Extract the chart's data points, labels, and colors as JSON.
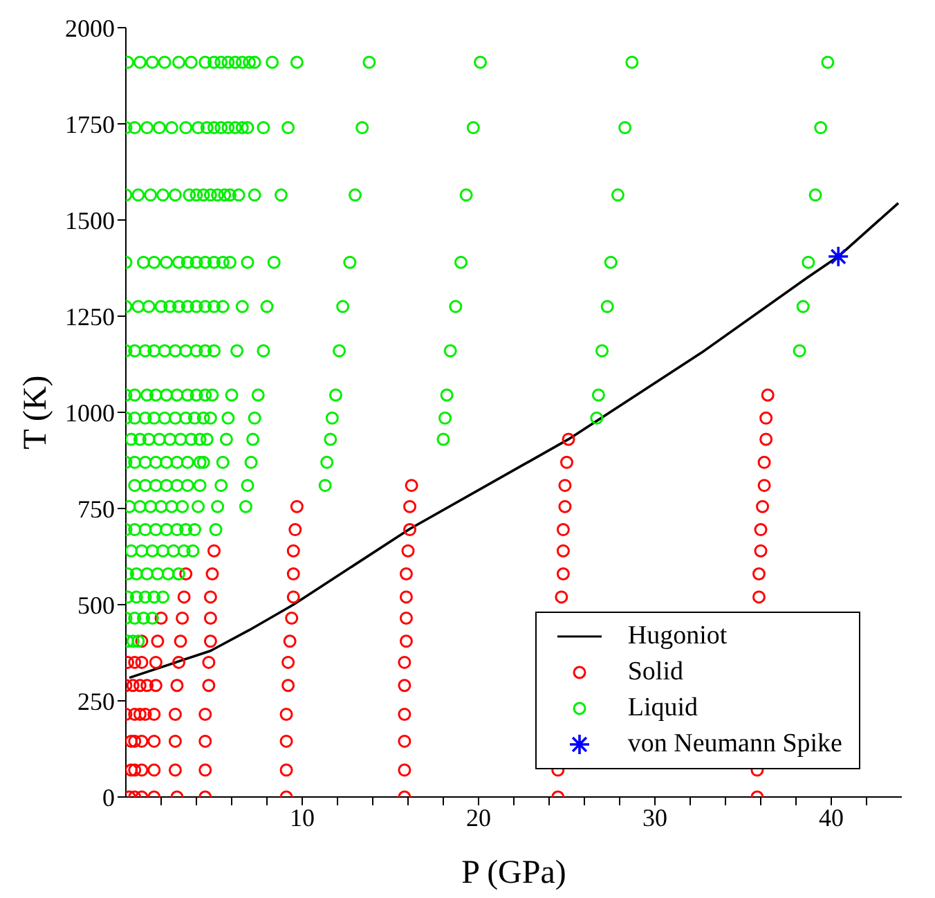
{
  "chart_data": {
    "type": "scatter",
    "xlabel": "P (GPa)",
    "ylabel": "T (K)",
    "xlim": [
      0,
      44
    ],
    "ylim": [
      0,
      2000
    ],
    "xticks": [
      {
        "value": 2,
        "label": null
      },
      {
        "value": 4,
        "label": null
      },
      {
        "value": 6,
        "label": null
      },
      {
        "value": 8,
        "label": null
      },
      10,
      {
        "value": 12,
        "label": null
      },
      {
        "value": 14,
        "label": null
      },
      {
        "value": 16,
        "label": null
      },
      {
        "value": 18,
        "label": null
      },
      20,
      {
        "value": 22,
        "label": null
      },
      {
        "value": 24,
        "label": null
      },
      {
        "value": 26,
        "label": null
      },
      {
        "value": 28,
        "label": null
      },
      30,
      {
        "value": 32,
        "label": null
      },
      {
        "value": 34,
        "label": null
      },
      {
        "value": 36,
        "label": null
      },
      {
        "value": 38,
        "label": null
      },
      40,
      {
        "value": 42,
        "label": null
      }
    ],
    "yticks": [
      0,
      250,
      500,
      750,
      1000,
      1250,
      1500,
      1750,
      2000
    ],
    "legend": "bottom right",
    "series": [
      {
        "name": "Hugoniot",
        "type": "line",
        "color": "#000000",
        "marker": "none",
        "line_style": "solid",
        "x": [
          0.2,
          4.8,
          7.0,
          9.5,
          16.1,
          25.1,
          32.7,
          38.6,
          40.4,
          43.8
        ],
        "values": [
          310,
          380,
          434,
          500,
          697,
          930,
          1157,
          1349,
          1405,
          1544
        ]
      },
      {
        "name": "Solid",
        "color": "#ff0000",
        "marker": "circle",
        "x": [
          36.4,
          36.3,
          25.1,
          36.3,
          25.0,
          36.2,
          16.2,
          24.9,
          36.2,
          9.7,
          16.1,
          24.9,
          36.1,
          9.6,
          16.1,
          24.8,
          36.0,
          5.0,
          9.5,
          16.0,
          24.8,
          36.0,
          3.4,
          4.9,
          9.5,
          15.9,
          24.8,
          35.9,
          3.3,
          4.8,
          9.5,
          15.9,
          24.7,
          35.9,
          2.0,
          3.2,
          4.8,
          9.4,
          15.9,
          0.9,
          1.8,
          3.1,
          4.8,
          9.3,
          15.9,
          0.1,
          0.5,
          0.9,
          1.7,
          3.0,
          4.7,
          9.2,
          15.8,
          0,
          0.4,
          0.8,
          1.2,
          1.7,
          2.9,
          4.7,
          9.2,
          15.8,
          0,
          0.5,
          0.8,
          1.1,
          1.6,
          2.8,
          4.5,
          9.1,
          15.8,
          0.3,
          0.5,
          0.9,
          1.6,
          2.8,
          4.5,
          9.1,
          15.8,
          0.3,
          0.5,
          0.9,
          1.6,
          2.8,
          4.5,
          9.1,
          15.8,
          24.5,
          35.8,
          0.2,
          0.5,
          0.9,
          1.6,
          2.9,
          4.5,
          9.1,
          15.8,
          24.5,
          35.8
        ],
        "values": [
          1045,
          985,
          930,
          930,
          870,
          870,
          810,
          810,
          810,
          755,
          755,
          755,
          755,
          695,
          695,
          695,
          695,
          640,
          640,
          640,
          640,
          640,
          580,
          580,
          580,
          580,
          580,
          580,
          520,
          520,
          520,
          520,
          520,
          520,
          465,
          465,
          465,
          465,
          465,
          405,
          405,
          405,
          405,
          405,
          405,
          350,
          350,
          350,
          350,
          350,
          350,
          350,
          350,
          290,
          290,
          290,
          290,
          290,
          290,
          290,
          290,
          290,
          215,
          215,
          215,
          215,
          215,
          215,
          215,
          215,
          215,
          145,
          145,
          145,
          145,
          145,
          145,
          145,
          145,
          70,
          70,
          70,
          70,
          70,
          70,
          70,
          70,
          70,
          70,
          0,
          0,
          0,
          0,
          0,
          0,
          0,
          0,
          0,
          0
        ]
      },
      {
        "name": "Liquid",
        "color": "#00ee00",
        "marker": "circle",
        "x": [
          0.1,
          0.8,
          1.5,
          2.2,
          3.0,
          3.7,
          4.5,
          5.0,
          5.4,
          5.8,
          6.2,
          6.6,
          7.0,
          7.3,
          8.3,
          9.7,
          13.8,
          20.1,
          28.7,
          39.8,
          0,
          0.5,
          1.2,
          1.9,
          2.6,
          3.4,
          4.1,
          4.6,
          5.0,
          5.4,
          5.8,
          6.2,
          6.6,
          6.9,
          7.8,
          9.2,
          13.4,
          19.7,
          28.3,
          39.4,
          0,
          0.7,
          1.4,
          2.1,
          2.8,
          3.6,
          4.0,
          4.4,
          4.8,
          5.2,
          5.6,
          5.9,
          6.4,
          7.3,
          8.8,
          13.0,
          19.3,
          27.9,
          39.1,
          0,
          1.0,
          1.6,
          2.3,
          3.0,
          3.5,
          4.0,
          4.5,
          5.0,
          5.5,
          5.9,
          6.9,
          8.4,
          12.7,
          19.0,
          27.5,
          38.7,
          0,
          0.7,
          1.3,
          2.0,
          2.5,
          3.0,
          3.5,
          4.0,
          4.5,
          5.0,
          5.5,
          6.6,
          8.0,
          12.3,
          18.7,
          27.3,
          38.4,
          0,
          0.5,
          1.1,
          1.6,
          2.2,
          2.8,
          3.4,
          4.0,
          4.5,
          5.0,
          6.3,
          7.8,
          12.1,
          18.4,
          27.0,
          38.2,
          0,
          0.5,
          1.2,
          1.7,
          2.3,
          2.9,
          3.5,
          4.0,
          4.5,
          4.9,
          6.0,
          7.5,
          11.9,
          18.2,
          26.8,
          0,
          0.5,
          1.1,
          1.6,
          2.2,
          2.8,
          3.4,
          3.9,
          4.4,
          4.8,
          5.8,
          7.3,
          11.7,
          18.1,
          26.7,
          0.3,
          0.8,
          1.3,
          1.9,
          2.5,
          3.1,
          3.7,
          4.2,
          4.6,
          5.7,
          7.2,
          11.6,
          18.0,
          0,
          0.5,
          1.1,
          1.7,
          2.3,
          2.9,
          3.5,
          4.2,
          4.4,
          5.5,
          7.1,
          11.4,
          0.5,
          1.1,
          1.7,
          2.3,
          2.9,
          3.5,
          4.2,
          5.4,
          6.9,
          11.3,
          0.2,
          0.8,
          1.4,
          2.0,
          2.6,
          3.2,
          4.1,
          5.2,
          6.8,
          0,
          0.5,
          1.1,
          1.7,
          2.3,
          2.9,
          3.4,
          3.9,
          5.1,
          0.3,
          0.9,
          1.5,
          2.1,
          2.7,
          3.3,
          3.8,
          0.1,
          0.6,
          1.2,
          1.8,
          2.4,
          3.0,
          0.1,
          0.6,
          1.1,
          1.6,
          2.1,
          0,
          0.5,
          1.0,
          1.5,
          0.1,
          0.4,
          0.7
        ],
        "values": [
          1910,
          1910,
          1910,
          1910,
          1910,
          1910,
          1910,
          1910,
          1910,
          1910,
          1910,
          1910,
          1910,
          1910,
          1910,
          1910,
          1910,
          1910,
          1910,
          1910,
          1740,
          1740,
          1740,
          1740,
          1740,
          1740,
          1740,
          1740,
          1740,
          1740,
          1740,
          1740,
          1740,
          1740,
          1740,
          1740,
          1740,
          1740,
          1740,
          1740,
          1565,
          1565,
          1565,
          1565,
          1565,
          1565,
          1565,
          1565,
          1565,
          1565,
          1565,
          1565,
          1565,
          1565,
          1565,
          1565,
          1565,
          1565,
          1565,
          1390,
          1390,
          1390,
          1390,
          1390,
          1390,
          1390,
          1390,
          1390,
          1390,
          1390,
          1390,
          1390,
          1390,
          1390,
          1390,
          1390,
          1275,
          1275,
          1275,
          1275,
          1275,
          1275,
          1275,
          1275,
          1275,
          1275,
          1275,
          1275,
          1275,
          1275,
          1275,
          1275,
          1275,
          1160,
          1160,
          1160,
          1160,
          1160,
          1160,
          1160,
          1160,
          1160,
          1160,
          1160,
          1160,
          1160,
          1160,
          1160,
          1160,
          1045,
          1045,
          1045,
          1045,
          1045,
          1045,
          1045,
          1045,
          1045,
          1045,
          1045,
          1045,
          1045,
          1045,
          1045,
          985,
          985,
          985,
          985,
          985,
          985,
          985,
          985,
          985,
          985,
          985,
          985,
          985,
          985,
          985,
          930,
          930,
          930,
          930,
          930,
          930,
          930,
          930,
          930,
          930,
          930,
          930,
          930,
          870,
          870,
          870,
          870,
          870,
          870,
          870,
          870,
          870,
          870,
          870,
          870,
          810,
          810,
          810,
          810,
          810,
          810,
          810,
          810,
          810,
          810,
          755,
          755,
          755,
          755,
          755,
          755,
          755,
          755,
          755,
          695,
          695,
          695,
          695,
          695,
          695,
          695,
          695,
          695,
          640,
          640,
          640,
          640,
          640,
          640,
          640,
          580,
          580,
          580,
          580,
          580,
          580,
          520,
          520,
          520,
          520,
          520,
          465,
          465,
          465,
          465,
          405,
          405,
          405
        ]
      },
      {
        "name": "von Neumann Spike",
        "color": "#0000ff",
        "marker": "cross",
        "x": [
          40.4
        ],
        "values": [
          1405
        ]
      }
    ]
  }
}
